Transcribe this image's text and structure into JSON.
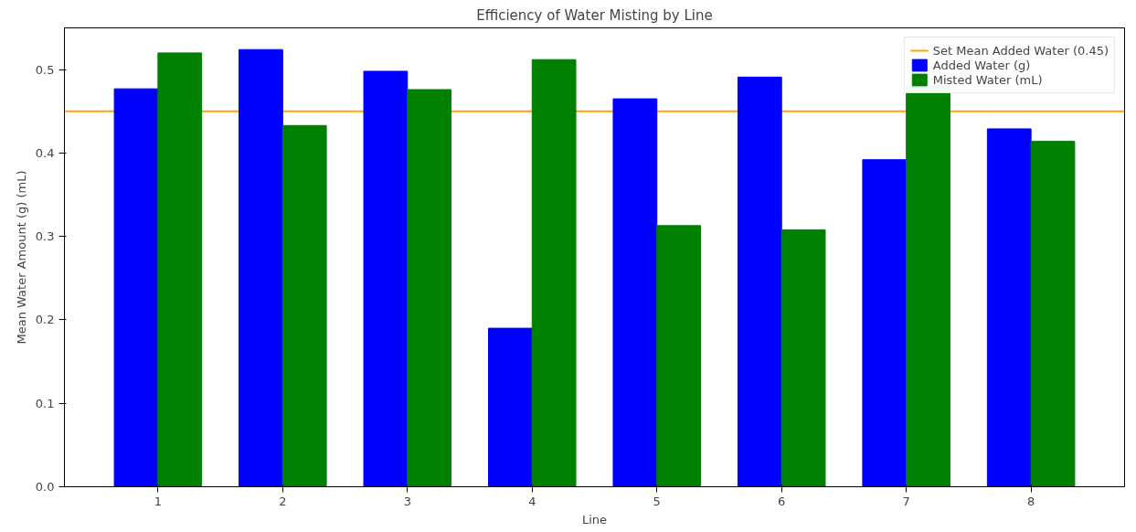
{
  "chart_data": {
    "type": "bar",
    "title": "Efficiency of Water Misting by Line",
    "xlabel": "Line",
    "ylabel": "Mean Water Amount (g) (mL)",
    "categories": [
      "1",
      "2",
      "3",
      "4",
      "5",
      "6",
      "7",
      "8"
    ],
    "series": [
      {
        "name": "Added Water (g)",
        "color": "#0000ff",
        "values": [
          0.477,
          0.524,
          0.498,
          0.19,
          0.465,
          0.491,
          0.392,
          0.429
        ]
      },
      {
        "name": "Misted Water (mL)",
        "color": "#008000",
        "values": [
          0.52,
          0.433,
          0.476,
          0.512,
          0.313,
          0.308,
          0.481,
          0.414
        ]
      }
    ],
    "ylim": [
      0,
      0.55
    ],
    "yticks": [
      {
        "value": 0,
        "label": "0.0"
      },
      0.1,
      0.2,
      0.3,
      0.4,
      0.5
    ],
    "ref_lines": [
      {
        "axis": "y",
        "value": 0.45,
        "label": "Set Mean Added Water (0.45)",
        "color": "#ffa500"
      }
    ],
    "legend": "top right",
    "grid": false
  }
}
